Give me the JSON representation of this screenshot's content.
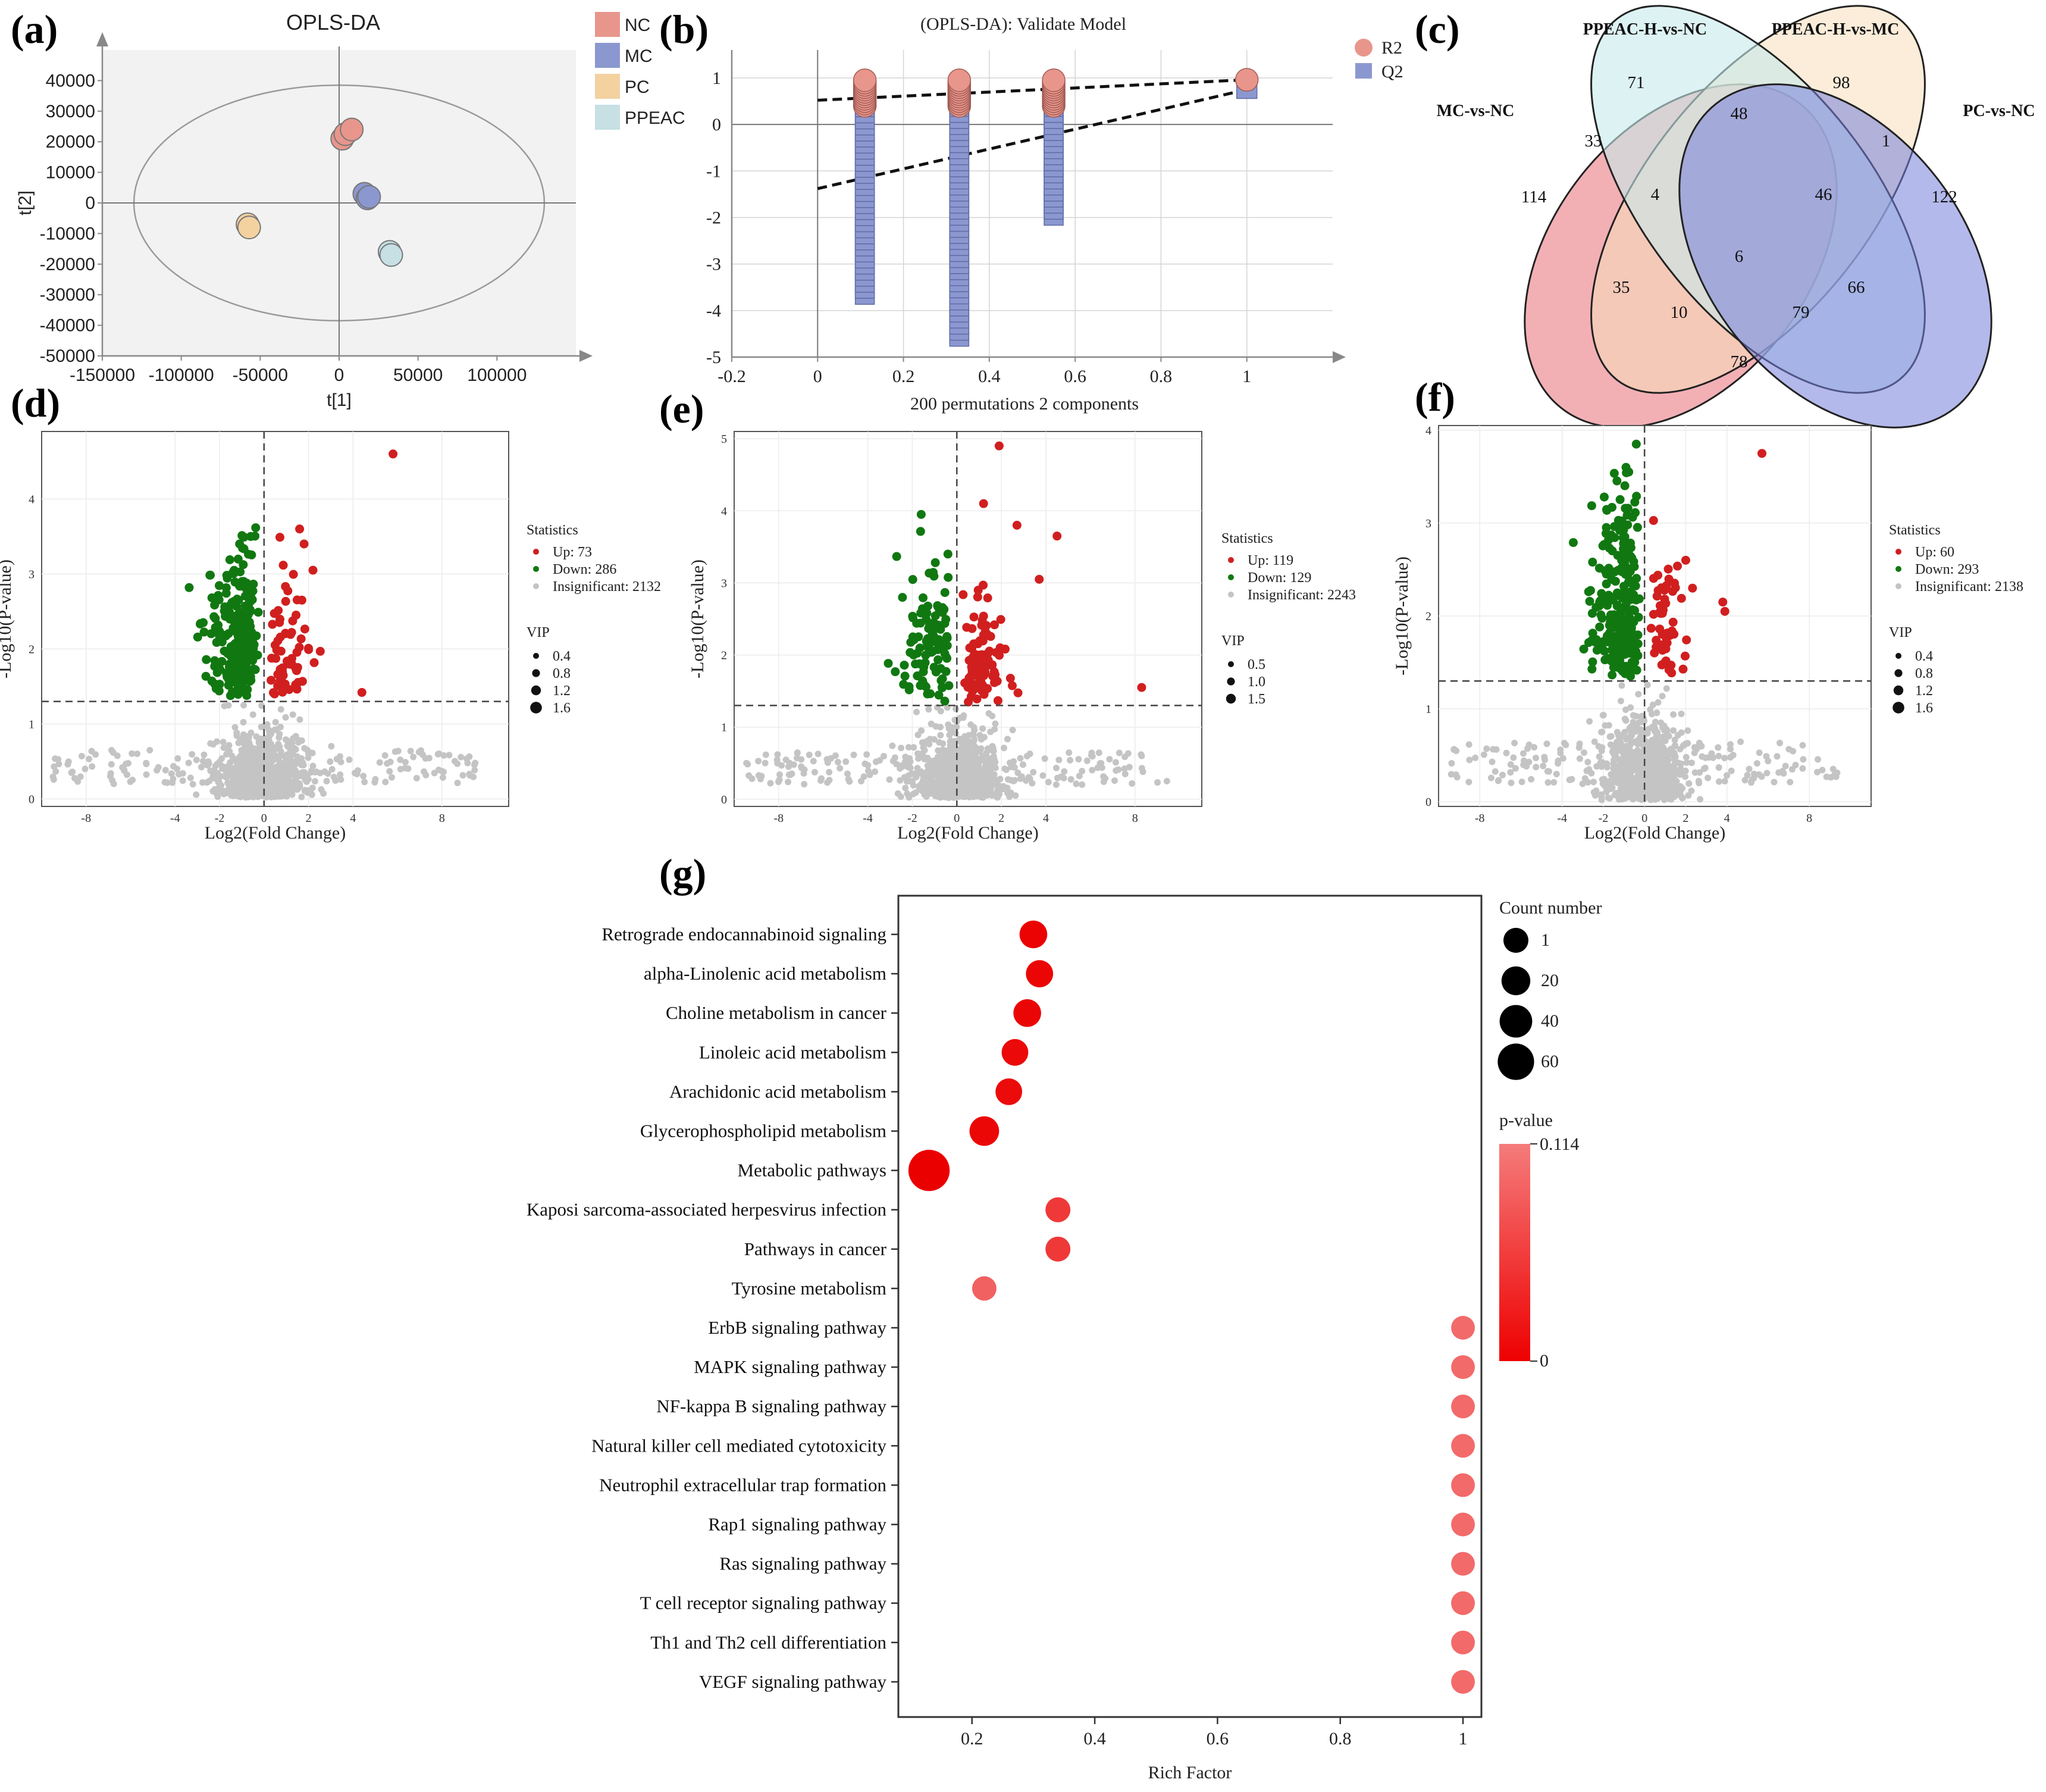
{
  "panels": {
    "a": "(a)",
    "b": "(b)",
    "c": "(c)",
    "d": "(d)",
    "e": "(e)",
    "f": "(f)",
    "g": "(g)"
  },
  "chart_data": [
    {
      "id": "a",
      "type": "scatter",
      "title": "OPLS-DA",
      "xlabel": "t[1]",
      "ylabel": "t[2]",
      "xlim": [
        -150000,
        150000
      ],
      "ylim": [
        -50000,
        50000
      ],
      "xticks": [
        -150000,
        -100000,
        -50000,
        0,
        50000,
        100000
      ],
      "xtick_labels": [
        "-150000",
        "-100000",
        "-50000",
        "0",
        "50000",
        "100000"
      ],
      "yticks": [
        -50000,
        -40000,
        -30000,
        -20000,
        -10000,
        0,
        10000,
        20000,
        30000,
        40000
      ],
      "ytick_labels": [
        "-50000",
        "-40000",
        "-30000",
        "-20000",
        "-10000",
        "0",
        "10000",
        "20000",
        "30000",
        "40000"
      ],
      "groups": [
        {
          "name": "NC",
          "color": "#e8968c",
          "points": [
            [
              2000,
              21000
            ],
            [
              4000,
              22500
            ],
            [
              8000,
              24000
            ]
          ]
        },
        {
          "name": "MC",
          "color": "#8b98d0",
          "points": [
            [
              16000,
              3000
            ],
            [
              18000,
              1500
            ],
            [
              19000,
              2000
            ]
          ]
        },
        {
          "name": "PC",
          "color": "#f3d2a0",
          "points": [
            [
              -58000,
              -7000
            ],
            [
              -57000,
              -8000
            ]
          ]
        },
        {
          "name": "PPEAC",
          "color": "#c6e0e4",
          "points": [
            [
              32000,
              -16000
            ],
            [
              33000,
              -17000
            ]
          ]
        }
      ]
    },
    {
      "id": "b",
      "type": "scatter",
      "title": "(OPLS-DA): Validate Model",
      "xlabel": "200 permutations 2 components",
      "xlim": [
        -0.2,
        1.2
      ],
      "ylim": [
        -5,
        1.6
      ],
      "xticks": [
        -0.2,
        0,
        0.2,
        0.4,
        0.6,
        0.8,
        1
      ],
      "xtick_labels": [
        "-0.2",
        "0",
        "0.2",
        "0.4",
        "0.6",
        "0.8",
        "1"
      ],
      "yticks": [
        1,
        0,
        -1,
        -2,
        -3,
        -4,
        -5
      ],
      "ytick_labels": [
        "1",
        "0",
        "-1",
        "-2",
        "-3",
        "-4",
        "-5"
      ],
      "series": [
        {
          "name": "R2",
          "color": "#e8968c"
        },
        {
          "name": "Q2",
          "color": "#8b98d0"
        }
      ],
      "columns_x": [
        0.11,
        0.33,
        0.55
      ],
      "r2_range": [
        0.4,
        1.0
      ],
      "q2_ranges": [
        [
          -3.7,
          0.5
        ],
        [
          -4.6,
          0.8
        ],
        [
          -2.0,
          0.8
        ]
      ],
      "r2_intercept": 0.52,
      "r2_end": 0.96,
      "q2_intercept": -1.38,
      "q2_end": 0.75,
      "orig_x": 1.0
    },
    {
      "id": "c",
      "type": "venn",
      "sets": [
        "MC-vs-NC",
        "PPEAC-H-vs-NC",
        "PPEAC-H-vs-MC",
        "PC-vs-NC"
      ],
      "regions": [
        {
          "sets": "A",
          "value": 114
        },
        {
          "sets": "B",
          "value": 71
        },
        {
          "sets": "C",
          "value": 98
        },
        {
          "sets": "D",
          "value": 122
        },
        {
          "sets": "AB",
          "value": 33
        },
        {
          "sets": "BC",
          "value": 48
        },
        {
          "sets": "CD",
          "value": 1
        },
        {
          "sets": "ABC",
          "value": 4
        },
        {
          "sets": "BCD",
          "value": 46
        },
        {
          "sets": "ABCD",
          "value": 6
        },
        {
          "sets": "AC",
          "value": 35
        },
        {
          "sets": "ACD",
          "value": 10
        },
        {
          "sets": "ABD",
          "value": 79
        },
        {
          "sets": "BD",
          "value": 66
        },
        {
          "sets": "AD",
          "value": 78
        }
      ]
    },
    {
      "id": "d",
      "type": "scatter",
      "xlabel": "Log2(Fold Change)",
      "ylabel": "-Log10(P-value)",
      "xlim": [
        -10,
        11
      ],
      "ylim": [
        -0.1,
        4.9
      ],
      "xticks": [
        -8,
        -4,
        -2,
        0,
        2,
        4,
        8
      ],
      "xtick_labels": [
        "-8",
        "-4",
        "-2",
        "0",
        "2",
        "4",
        "8"
      ],
      "yticks": [
        0,
        1,
        2,
        3,
        4
      ],
      "ytick_labels": [
        "0",
        "1",
        "2",
        "3",
        "4"
      ],
      "threshold": 1.3,
      "legend_title": "Statistics",
      "legend": [
        "Up: 73",
        "Down: 286",
        "Insignificant: 2132"
      ],
      "vip_title": "VIP",
      "vip_levels": [
        "0.4",
        "0.8",
        "1.2",
        "1.6"
      ],
      "counts": {
        "up": 73,
        "down": 286,
        "insig": 2132
      },
      "outliers": [
        [
          5.8,
          4.6
        ],
        [
          1.6,
          3.6
        ],
        [
          1.8,
          3.4
        ],
        [
          2.2,
          3.05
        ],
        [
          4.4,
          1.42
        ],
        [
          -1.1,
          3.4
        ],
        [
          -0.6,
          3.5
        ]
      ],
      "seed": 11
    },
    {
      "id": "e",
      "type": "scatter",
      "xlabel": "Log2(Fold Change)",
      "ylabel": "-Log10(P-value)",
      "xlim": [
        -10,
        11
      ],
      "ylim": [
        -0.1,
        5.1
      ],
      "xticks": [
        -8,
        -4,
        -2,
        0,
        2,
        4,
        8
      ],
      "xtick_labels": [
        "-8",
        "-4",
        "-2",
        "0",
        "2",
        "4",
        "8"
      ],
      "yticks": [
        0,
        1,
        2,
        3,
        4,
        5
      ],
      "ytick_labels": [
        "0",
        "1",
        "2",
        "3",
        "4",
        "5"
      ],
      "threshold": 1.3,
      "legend_title": "Statistics",
      "legend": [
        "Up: 119",
        "Down: 129",
        "Insignificant: 2243"
      ],
      "vip_title": "VIP",
      "vip_levels": [
        "0.5",
        "1.0",
        "1.5"
      ],
      "counts": {
        "up": 119,
        "down": 129,
        "insig": 2243
      },
      "outliers": [
        [
          1.9,
          4.9
        ],
        [
          1.2,
          4.1
        ],
        [
          2.7,
          3.8
        ],
        [
          4.5,
          3.65
        ],
        [
          3.7,
          3.05
        ],
        [
          8.3,
          1.55
        ],
        [
          -1.6,
          3.95
        ],
        [
          -0.4,
          3.4
        ]
      ],
      "seed": 23
    },
    {
      "id": "f",
      "type": "scatter",
      "xlabel": "Log2(Fold Change)",
      "ylabel": "-Log10(P-value)",
      "xlim": [
        -10,
        11
      ],
      "ylim": [
        -0.05,
        4.05
      ],
      "xticks": [
        -8,
        -4,
        -2,
        0,
        2,
        4,
        8
      ],
      "xtick_labels": [
        "-8",
        "-4",
        "-2",
        "0",
        "2",
        "4",
        "8"
      ],
      "yticks": [
        0,
        1,
        2,
        3,
        4
      ],
      "ytick_labels": [
        "0",
        "1",
        "2",
        "3",
        "4"
      ],
      "threshold": 1.3,
      "legend_title": "Statistics",
      "legend": [
        "Up: 60",
        "Down: 293",
        "Insignificant: 2138"
      ],
      "vip_title": "VIP",
      "vip_levels": [
        "0.4",
        "0.8",
        "1.2",
        "1.6"
      ],
      "counts": {
        "up": 60,
        "down": 293,
        "insig": 2138
      },
      "outliers": [
        [
          5.7,
          3.75
        ],
        [
          2.0,
          2.6
        ],
        [
          3.8,
          2.15
        ],
        [
          3.9,
          2.05
        ],
        [
          -0.4,
          3.85
        ],
        [
          -0.9,
          3.6
        ]
      ],
      "seed": 37
    },
    {
      "id": "g",
      "type": "scatter",
      "xlabel": "Rich Factor",
      "xlim": [
        0.08,
        1.03
      ],
      "xticks": [
        0.2,
        0.4,
        0.6,
        0.8,
        1
      ],
      "xtick_labels": [
        "0.2",
        "0.4",
        "0.6",
        "0.8",
        "1"
      ],
      "count_title": "Count number",
      "count_levels": [
        "1",
        "20",
        "40",
        "60"
      ],
      "pvalue_title": "p-value",
      "pvalue_range_labels": [
        "0.114",
        "0"
      ],
      "categories": [
        "Retrograde endocannabinoid signaling",
        "alpha-Linolenic acid metabolism",
        "Choline metabolism in cancer",
        "Linoleic acid metabolism",
        "Arachidonic acid metabolism",
        "Glycerophospholipid metabolism",
        "Metabolic pathways",
        "Kaposi sarcoma-associated herpesvirus infection",
        "Pathways in cancer",
        "Tyrosine metabolism",
        "ErbB signaling pathway",
        "MAPK signaling pathway",
        "NF-kappa B signaling pathway",
        "Natural killer cell mediated cytotoxicity",
        "Neutrophil extracellular trap formation",
        "Rap1 signaling pathway",
        "Ras signaling pathway",
        "T cell receptor signaling pathway",
        "Th1 and Th2 cell differentiation",
        "VEGF signaling pathway"
      ],
      "rich_factor": [
        0.3,
        0.31,
        0.29,
        0.27,
        0.26,
        0.22,
        0.13,
        0.34,
        0.34,
        0.22,
        1,
        1,
        1,
        1,
        1,
        1,
        1,
        1,
        1,
        1
      ],
      "count": [
        18,
        17,
        18,
        16,
        16,
        22,
        55,
        13,
        13,
        12,
        11,
        11,
        11,
        11,
        11,
        11,
        11,
        11,
        11,
        11
      ],
      "pvalue": [
        0.002,
        0.004,
        0.005,
        0.008,
        0.01,
        0.006,
        0.0,
        0.05,
        0.05,
        0.085,
        0.093,
        0.093,
        0.093,
        0.093,
        0.093,
        0.093,
        0.093,
        0.093,
        0.093,
        0.093
      ]
    }
  ]
}
